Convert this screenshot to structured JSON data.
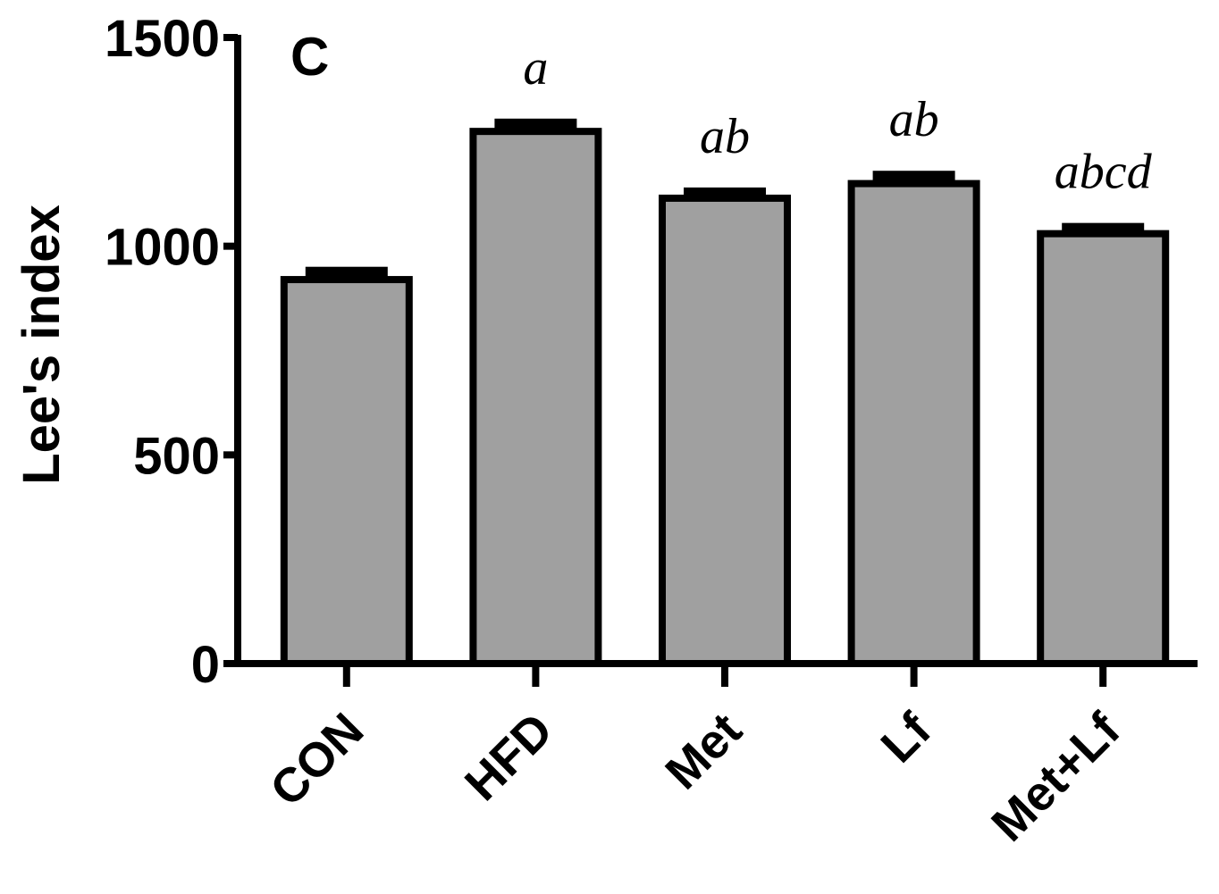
{
  "chart_data": {
    "type": "bar",
    "panel_label": "C",
    "ylabel": "Lee's index",
    "xlabel": "",
    "ylim": [
      0,
      1500
    ],
    "yticks": [
      0,
      500,
      1000,
      1500
    ],
    "categories": [
      "CON",
      "HFD",
      "Met",
      "Lf",
      "Met+Lf"
    ],
    "values": [
      920,
      1275,
      1115,
      1150,
      1030
    ],
    "errors": [
      20,
      20,
      15,
      20,
      15
    ],
    "significance": [
      "",
      "a",
      "ab",
      "ab",
      "abcd"
    ],
    "bar_color": "#a0a0a0",
    "edge_color": "#000000",
    "grid": false,
    "legend": "none"
  }
}
